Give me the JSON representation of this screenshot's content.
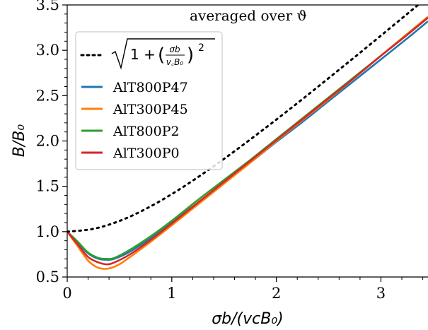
{
  "chart_data": {
    "type": "line",
    "annotation": "averaged over ϑ",
    "xlabel": "σb/(vᴄB₀)",
    "ylabel": "B/B₀",
    "xlim": [
      0,
      3.45
    ],
    "ylim": [
      0.5,
      3.5
    ],
    "x_ticks": [
      "0",
      "1",
      "2",
      "3"
    ],
    "y_ticks": [
      "0.5",
      "1.0",
      "1.5",
      "2.0",
      "2.5",
      "3.0",
      "3.5"
    ],
    "grid": false,
    "legend_position": "upper-left",
    "reference_curve": {
      "label": "√(1 + (σb/(vᴄB₀))²)",
      "style": "dotted",
      "color": "#000000",
      "x": [
        0,
        0.25,
        0.5,
        0.75,
        1.0,
        1.25,
        1.5,
        1.75,
        2.0,
        2.25,
        2.5,
        2.75,
        3.0,
        3.25,
        3.45
      ],
      "y": [
        1.0,
        1.031,
        1.118,
        1.25,
        1.414,
        1.601,
        1.803,
        2.016,
        2.236,
        2.462,
        2.693,
        2.926,
        3.162,
        3.4,
        3.59
      ]
    },
    "series": [
      {
        "name": "AlT800P47",
        "color": "#1f77b4",
        "x": [
          0,
          0.1,
          0.2,
          0.3,
          0.38,
          0.45,
          0.6,
          0.8,
          1.0,
          1.25,
          1.5,
          1.75,
          2.0,
          2.25,
          2.5,
          2.75,
          3.0,
          3.25,
          3.45
        ],
        "y": [
          1.0,
          0.88,
          0.76,
          0.7,
          0.69,
          0.7,
          0.78,
          0.93,
          1.1,
          1.32,
          1.54,
          1.76,
          1.99,
          2.21,
          2.44,
          2.67,
          2.9,
          3.13,
          3.32
        ]
      },
      {
        "name": "AlT300P45",
        "color": "#ff7f0e",
        "x": [
          0,
          0.1,
          0.2,
          0.28,
          0.35,
          0.42,
          0.5,
          0.6,
          0.8,
          1.0,
          1.25,
          1.5,
          1.75,
          2.0,
          2.25,
          2.5,
          2.75,
          3.0,
          3.25,
          3.45
        ],
        "y": [
          1.0,
          0.84,
          0.68,
          0.61,
          0.59,
          0.6,
          0.64,
          0.72,
          0.89,
          1.07,
          1.3,
          1.53,
          1.76,
          2.0,
          2.23,
          2.46,
          2.7,
          2.94,
          3.18,
          3.37
        ]
      },
      {
        "name": "AlT800P2",
        "color": "#2ca02c",
        "x": [
          0,
          0.1,
          0.2,
          0.3,
          0.38,
          0.45,
          0.6,
          0.8,
          1.0,
          1.25,
          1.5,
          1.75,
          2.0,
          2.25,
          2.5,
          2.75,
          3.0,
          3.25,
          3.45
        ],
        "y": [
          1.0,
          0.89,
          0.77,
          0.71,
          0.7,
          0.71,
          0.8,
          0.95,
          1.12,
          1.35,
          1.57,
          1.79,
          2.02,
          2.25,
          2.48,
          2.71,
          2.94,
          3.17,
          3.36
        ]
      },
      {
        "name": "AlT300P0",
        "color": "#d62728",
        "x": [
          0,
          0.1,
          0.2,
          0.3,
          0.38,
          0.45,
          0.6,
          0.8,
          1.0,
          1.25,
          1.5,
          1.75,
          2.0,
          2.25,
          2.5,
          2.75,
          3.0,
          3.25,
          3.45
        ],
        "y": [
          1.0,
          0.86,
          0.72,
          0.66,
          0.64,
          0.66,
          0.75,
          0.91,
          1.09,
          1.32,
          1.55,
          1.78,
          2.01,
          2.24,
          2.47,
          2.7,
          2.94,
          3.17,
          3.36
        ]
      }
    ]
  }
}
